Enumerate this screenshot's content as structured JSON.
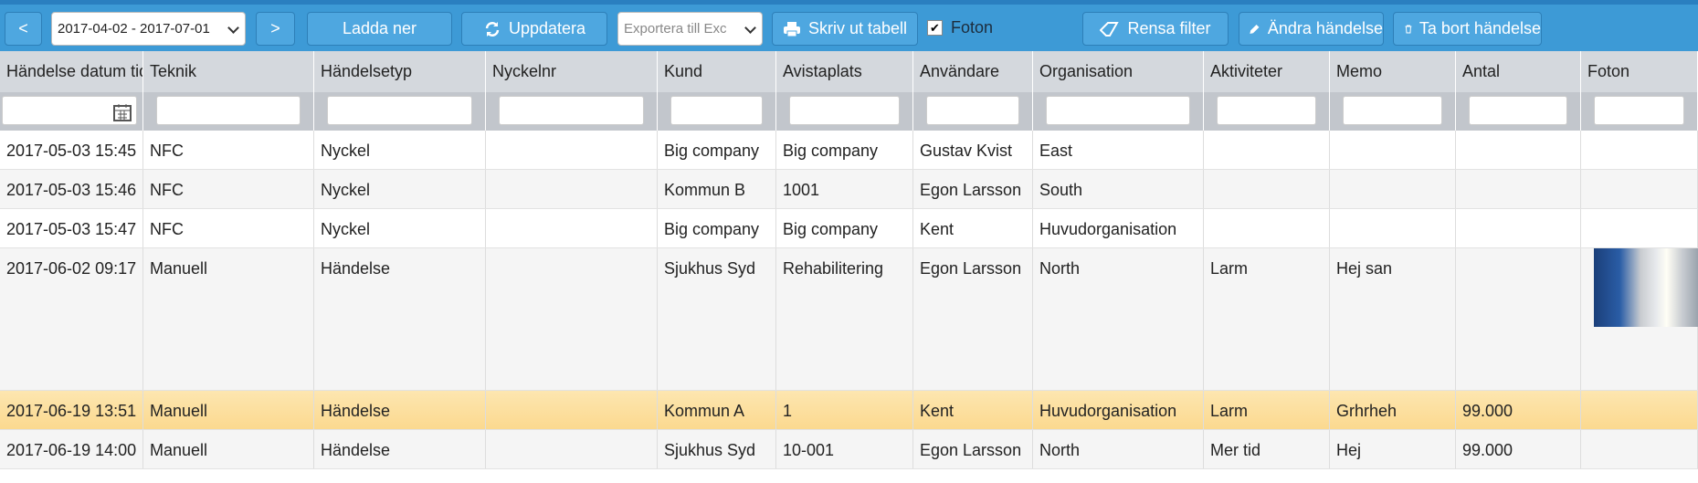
{
  "toolbar": {
    "prev": "<",
    "date_range": "2017-04-02 - 2017-07-01",
    "next": ">",
    "download": "Ladda ner",
    "refresh": "Uppdatera",
    "export": "Exportera till Exc",
    "print": "Skriv ut tabell",
    "photos": "Foton",
    "clear_filter": "Rensa filter",
    "edit": "Ändra händelse",
    "delete": "Ta bort händelse"
  },
  "table": {
    "columns": [
      "Händelse datum tid",
      "Teknik",
      "Händelsetyp",
      "Nyckelnr",
      "Kund",
      "Avistaplats",
      "Användare",
      "Organisation",
      "Aktiviteter",
      "Memo",
      "Antal",
      "Foton"
    ],
    "rows": [
      [
        "2017-05-03 15:45",
        "NFC",
        "Nyckel",
        null,
        "Big company",
        "Big company",
        "Gustav Kvist",
        "East",
        null,
        null,
        null,
        null
      ],
      [
        "2017-05-03 15:46",
        "NFC",
        "Nyckel",
        null,
        "Kommun B",
        "1001",
        "Egon Larsson",
        "South",
        null,
        null,
        null,
        null
      ],
      [
        "2017-05-03 15:47",
        "NFC",
        "Nyckel",
        null,
        "Big company",
        "Big company",
        "Kent",
        "Huvudorganisation",
        null,
        null,
        null,
        null
      ],
      [
        "2017-06-02 09:17",
        "Manuell",
        "Händelse",
        null,
        "Sjukhus Syd",
        "Rehabilitering",
        "Egon Larsson",
        "North",
        "Larm",
        "Hej san",
        null,
        null
      ],
      [
        "2017-06-19 13:51",
        "Manuell",
        "Händelse",
        null,
        "Kommun A",
        "1",
        "Kent",
        "Huvudorganisation",
        "Larm",
        "Grhrheh",
        "99.000",
        null
      ],
      [
        "2017-06-19 14:00",
        "Manuell",
        "Händelse",
        null,
        "Sjukhus Syd",
        "10-001",
        "Egon Larsson",
        "North",
        "Mer tid",
        "Hej",
        "99.000",
        null
      ]
    ]
  }
}
